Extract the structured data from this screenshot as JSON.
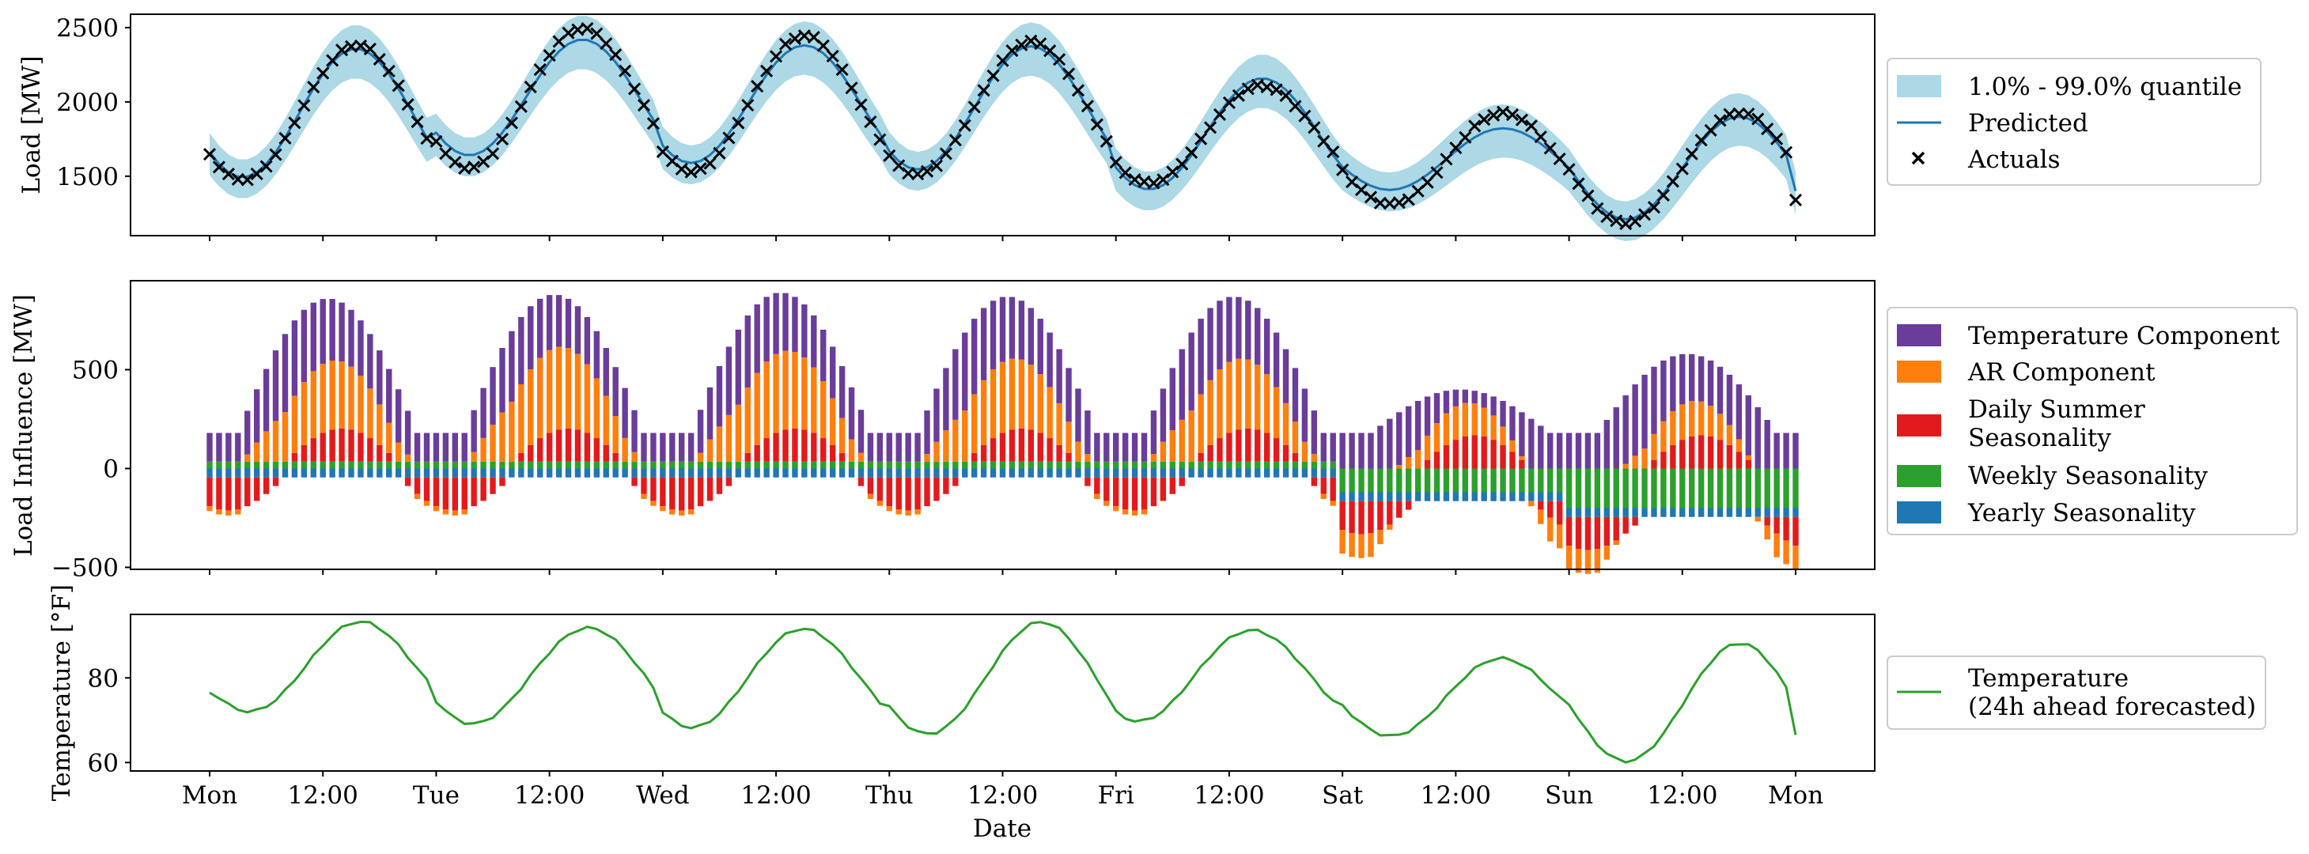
{
  "x_axis": {
    "label": "Date",
    "range": [
      0,
      168
    ],
    "ticks": [
      {
        "value": 0,
        "label": "Mon"
      },
      {
        "value": 12,
        "label": "12:00"
      },
      {
        "value": 24,
        "label": "Tue"
      },
      {
        "value": 36,
        "label": "12:00"
      },
      {
        "value": 48,
        "label": "Wed"
      },
      {
        "value": 60,
        "label": "12:00"
      },
      {
        "value": 72,
        "label": "Thu"
      },
      {
        "value": 84,
        "label": "12:00"
      },
      {
        "value": 96,
        "label": "Fri"
      },
      {
        "value": 108,
        "label": "12:00"
      },
      {
        "value": 120,
        "label": "Sat"
      },
      {
        "value": 132,
        "label": "12:00"
      },
      {
        "value": 144,
        "label": "Sun"
      },
      {
        "value": 156,
        "label": "12:00"
      },
      {
        "value": 168,
        "label": "Mon"
      }
    ]
  },
  "colors": {
    "band": "#add8e6",
    "predicted": "#1f77b4",
    "actuals": "#000000",
    "temperature_component": "#6a3d9a",
    "ar_component": "#ff7f0e",
    "daily_summer": "#e31a1c",
    "weekly": "#2ca02c",
    "yearly": "#1f77b4",
    "temperature_line": "#2ca02c"
  },
  "chart_data": [
    {
      "id": "load",
      "type": "line",
      "ylabel": "Load [MW]",
      "ylim": [
        1100,
        2590
      ],
      "yticks": [
        1500,
        2000,
        2500
      ],
      "day_shapes": [
        {
          "min": 1470,
          "max": 2380,
          "peak_hour": 15.5,
          "amp_model": 0.95
        },
        {
          "min": 1560,
          "max": 2500,
          "peak_hour": 15.5,
          "amp_model": 0.83
        },
        {
          "min": 1530,
          "max": 2440,
          "peak_hour": 15.0,
          "amp_model": 0.87
        },
        {
          "min": 1510,
          "max": 2410,
          "peak_hour": 15.0,
          "amp_model": 0.92
        },
        {
          "min": 1460,
          "max": 2110,
          "peak_hour": 15.5,
          "amp_model": 1.15
        },
        {
          "min": 1310,
          "max": 1920,
          "peak_hour": 17.0,
          "amp_model": 0.68
        },
        {
          "min": 1180,
          "max": 1930,
          "peak_hour": 18.0,
          "amp_model": 0.92
        }
      ],
      "end_value": 1340,
      "band_width": [
        260,
        360
      ],
      "legend": [
        "1.0% - 99.0% quantile",
        "Predicted",
        "Actuals"
      ]
    },
    {
      "id": "components",
      "type": "bar",
      "stacked": true,
      "ylabel": "Load Influence [MW]",
      "ylim": [
        -510,
        950
      ],
      "yticks": [
        -500,
        0,
        500
      ],
      "day_peaks_temperature_total": [
        860,
        880,
        890,
        870,
        870,
        400,
        580
      ],
      "day_peaks_ar": [
        350,
        420,
        400,
        360,
        360,
        170,
        180
      ],
      "series": [
        {
          "name": "Temperature Component",
          "color_key": "temperature_component"
        },
        {
          "name": "AR Component",
          "color_key": "ar_component"
        },
        {
          "name": "Daily Summer\nSeasonality",
          "color_key": "daily_summer"
        },
        {
          "name": "Weekly Seasonality",
          "color_key": "weekly"
        },
        {
          "name": "Yearly Seasonality",
          "color_key": "yearly"
        }
      ],
      "weekly_values": [
        35,
        35,
        35,
        35,
        35,
        -120,
        -200
      ],
      "yearly_value": -45,
      "daily_summer_range": [
        -210,
        210
      ]
    },
    {
      "id": "temperature",
      "type": "line",
      "ylabel": "Temperature [°F]",
      "ylim": [
        58,
        95
      ],
      "yticks": [
        60,
        80
      ],
      "day_shapes": [
        {
          "min": 72,
          "max": 93,
          "peak_hour": 16
        },
        {
          "min": 69,
          "max": 92,
          "peak_hour": 16
        },
        {
          "min": 68.5,
          "max": 91.5,
          "peak_hour": 15
        },
        {
          "min": 66.5,
          "max": 93,
          "peak_hour": 16
        },
        {
          "min": 70,
          "max": 91.5,
          "peak_hour": 14.5
        },
        {
          "min": 66.5,
          "max": 84.5,
          "peak_hour": 17
        },
        {
          "min": 60,
          "max": 88,
          "peak_hour": 18
        }
      ],
      "start_value": 76.5,
      "end_value": 66.5,
      "legend": [
        "Temperature\n(24h ahead forecasted)"
      ]
    }
  ]
}
